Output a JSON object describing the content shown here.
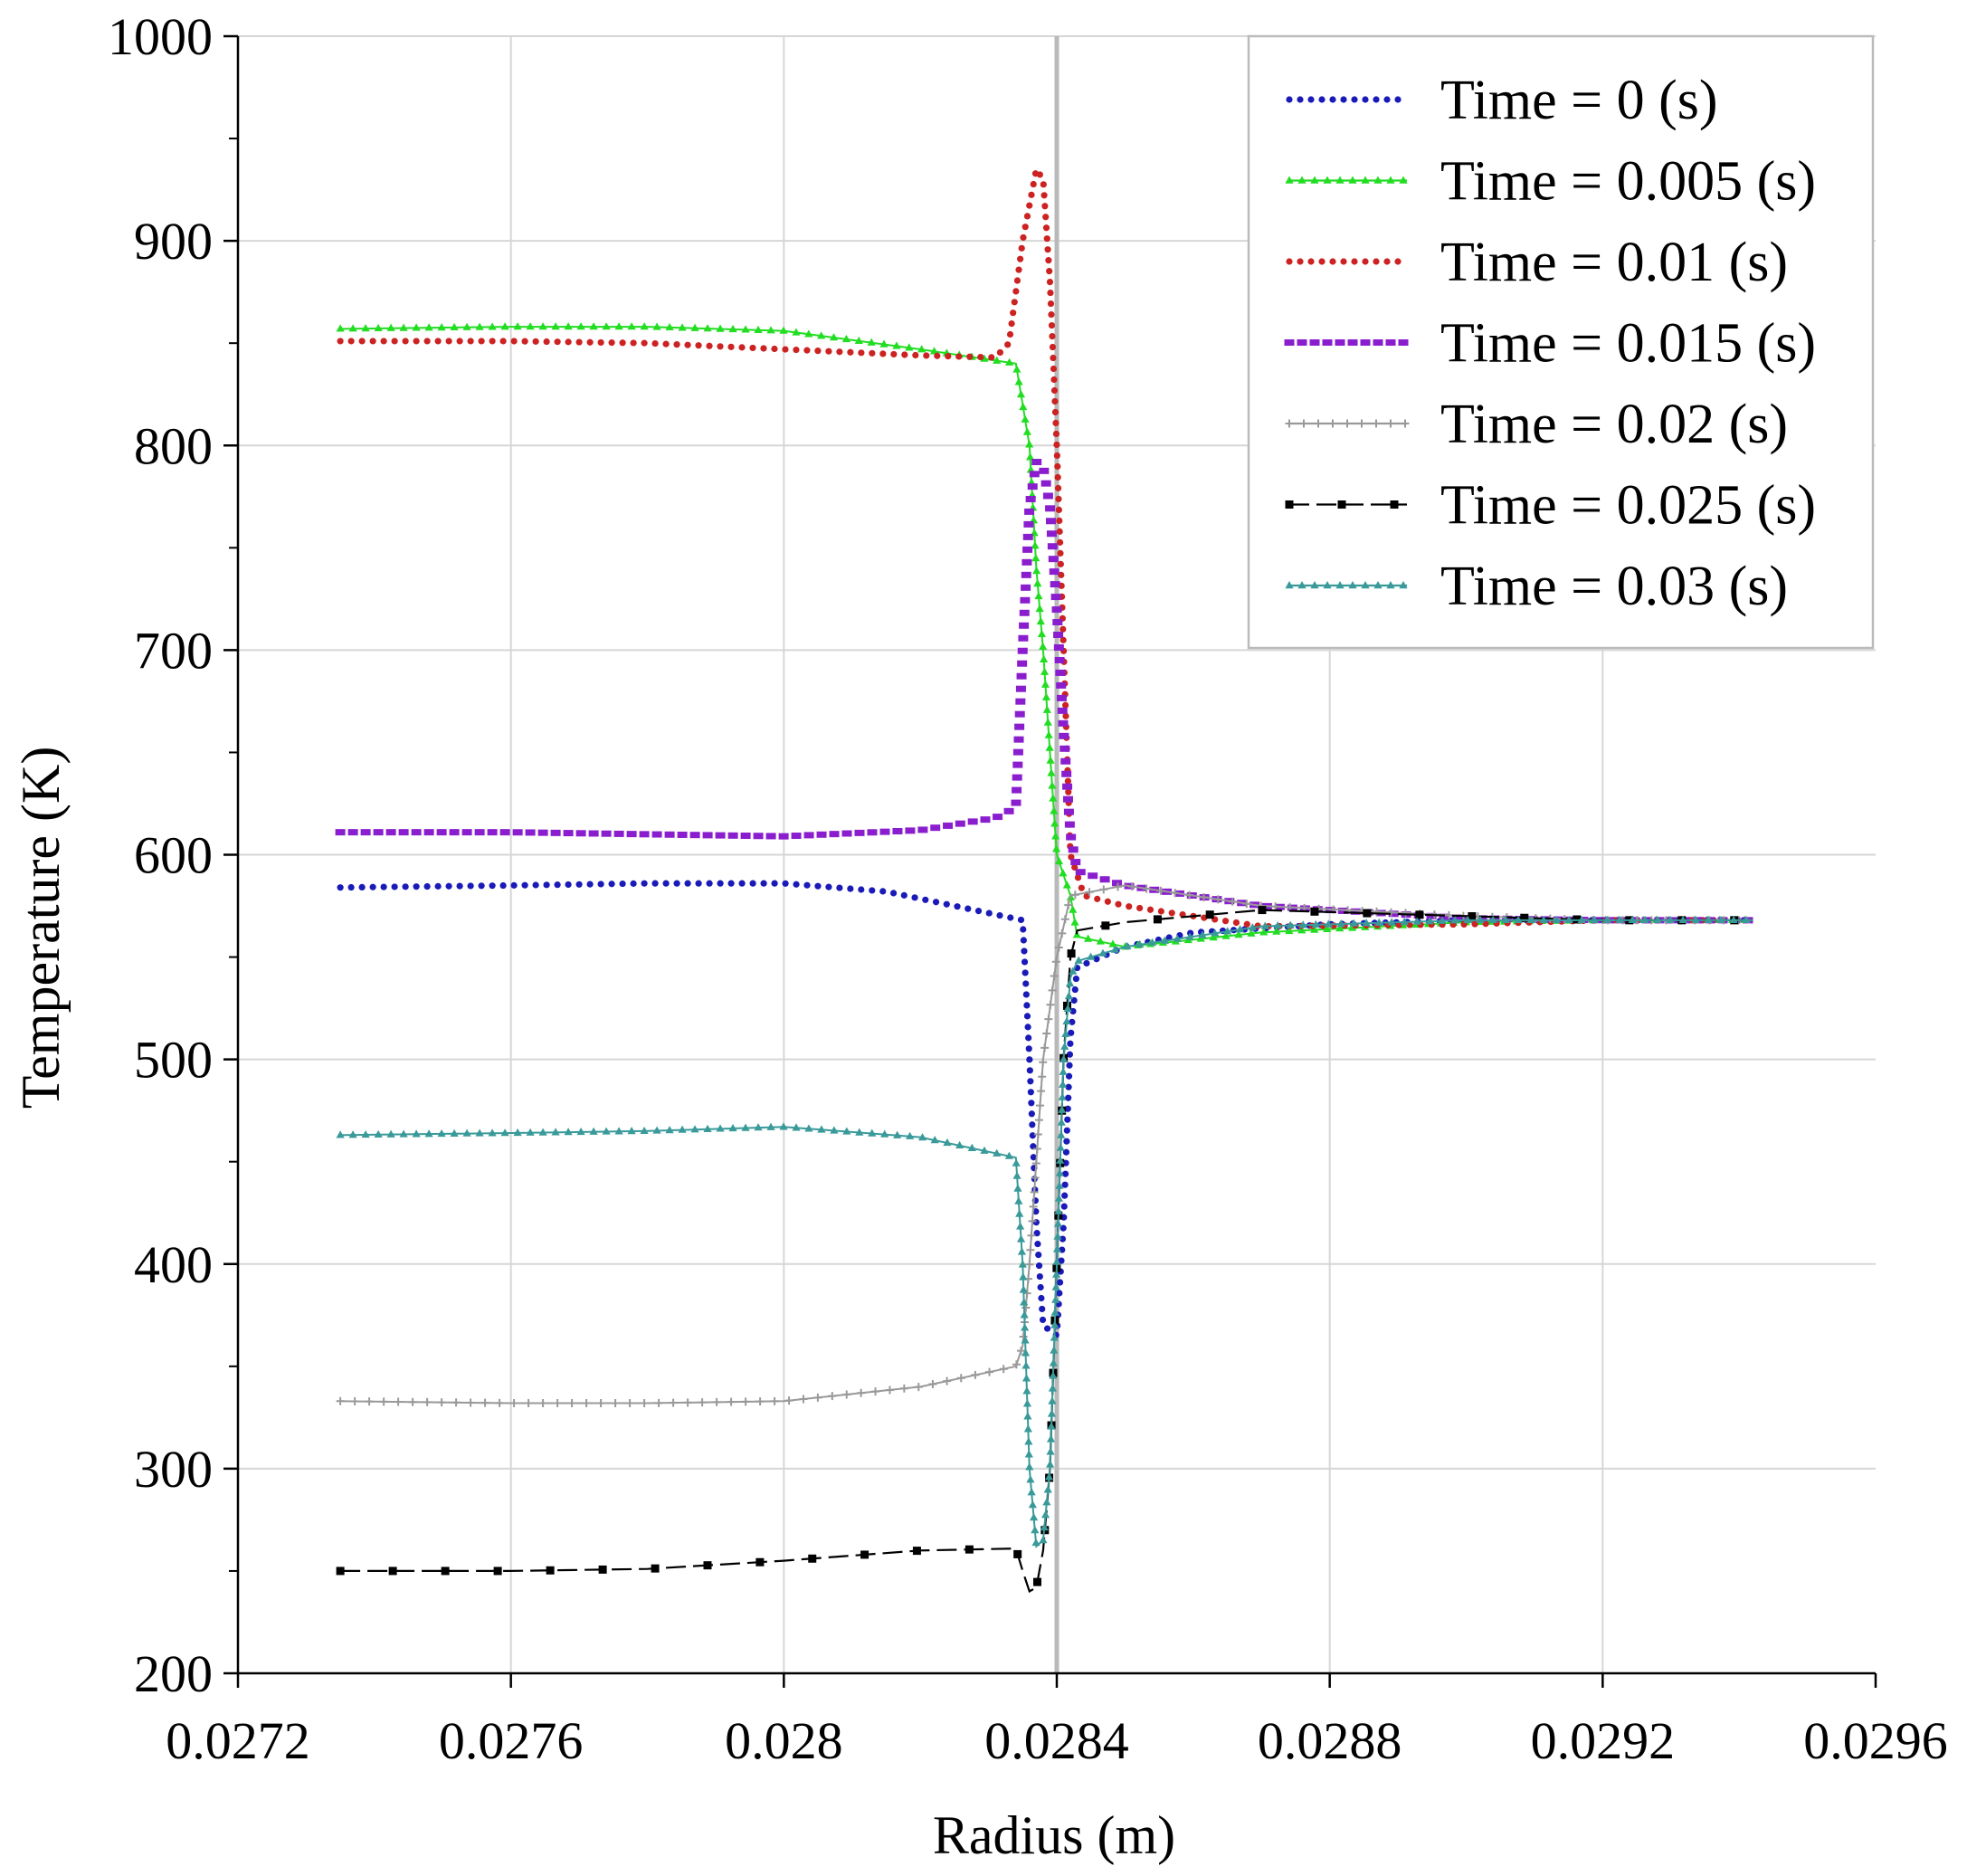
{
  "chart_data": {
    "type": "line",
    "title": "",
    "xlabel": "Radius (m)",
    "ylabel": "Temperature (K)",
    "xlim": [
      0.0272,
      0.0296
    ],
    "ylim": [
      200,
      1000
    ],
    "xticks": [
      0.0272,
      0.0276,
      0.028,
      0.0284,
      0.0288,
      0.0292,
      0.0296
    ],
    "xtick_labels": [
      "0.0272",
      "0.0276",
      "0.028",
      "0.0284",
      "0.0288",
      "0.0292",
      "0.0296"
    ],
    "yticks": [
      200,
      300,
      400,
      500,
      600,
      700,
      800,
      900,
      1000
    ],
    "ytick_labels": [
      "200",
      "300",
      "400",
      "500",
      "600",
      "700",
      "800",
      "900",
      "1000"
    ],
    "y_minor_ticks": [
      250,
      350,
      450,
      550,
      650,
      750,
      850,
      950
    ],
    "x_highlight": 0.0284,
    "grid": true,
    "legend_position": "top-right",
    "series": [
      {
        "name": "Time = 0 (s)",
        "color": "#1a1ab8",
        "style": "dots",
        "x": [
          0.02735,
          0.0276,
          0.0278,
          0.028,
          0.02815,
          0.02825,
          0.02835,
          0.02836,
          0.02837,
          0.02838,
          0.0284,
          0.02841,
          0.02842,
          0.02843,
          0.0285,
          0.0286,
          0.0288,
          0.029,
          0.0292,
          0.02942
        ],
        "y": [
          584,
          585,
          586,
          586,
          582,
          575,
          568,
          500,
          420,
          370,
          365,
          420,
          510,
          545,
          555,
          562,
          566,
          568,
          568,
          568
        ]
      },
      {
        "name": "Time = 0.005 (s)",
        "color": "#22dd22",
        "style": "triangles",
        "x": [
          0.02735,
          0.0276,
          0.0278,
          0.028,
          0.0282,
          0.02834,
          0.02836,
          0.02837,
          0.02838,
          0.0284,
          0.02842,
          0.02843,
          0.0285,
          0.0287,
          0.029,
          0.0292,
          0.02942
        ],
        "y": [
          857,
          858,
          858,
          856,
          847,
          840,
          800,
          740,
          700,
          600,
          580,
          560,
          555,
          562,
          567,
          568,
          568
        ]
      },
      {
        "name": "Time = 0.01 (s)",
        "color": "#cc2222",
        "style": "dots",
        "x": [
          0.02735,
          0.0276,
          0.0278,
          0.028,
          0.0282,
          0.02831,
          0.02833,
          0.02835,
          0.02837,
          0.02838,
          0.02839,
          0.0284,
          0.02841,
          0.02842,
          0.02844,
          0.0285,
          0.0287,
          0.029,
          0.0292,
          0.02942
        ],
        "y": [
          851,
          851,
          850,
          847,
          844,
          843,
          850,
          900,
          935,
          930,
          880,
          800,
          700,
          600,
          580,
          575,
          565,
          566,
          568,
          568
        ]
      },
      {
        "name": "Time = 0.015 (s)",
        "color": "#8a1ecf",
        "style": "dashes",
        "x": [
          0.02735,
          0.0276,
          0.0278,
          0.028,
          0.0282,
          0.02831,
          0.02834,
          0.02835,
          0.02836,
          0.02837,
          0.02838,
          0.02839,
          0.0284,
          0.02841,
          0.02842,
          0.02843,
          0.0285,
          0.0287,
          0.029,
          0.0292,
          0.02942
        ],
        "y": [
          611,
          611,
          610,
          609,
          612,
          618,
          623,
          700,
          770,
          792,
          790,
          770,
          720,
          660,
          610,
          592,
          585,
          575,
          569,
          568,
          568
        ]
      },
      {
        "name": "Time = 0.02 (s)",
        "color": "#999999",
        "style": "plus",
        "x": [
          0.02735,
          0.0276,
          0.0278,
          0.028,
          0.0282,
          0.02834,
          0.02835,
          0.02836,
          0.02837,
          0.02838,
          0.0284,
          0.02842,
          0.0285,
          0.0287,
          0.029,
          0.0292,
          0.02942
        ],
        "y": [
          333,
          332,
          332,
          333,
          340,
          350,
          360,
          400,
          450,
          500,
          550,
          580,
          585,
          575,
          570,
          568,
          568
        ]
      },
      {
        "name": "Time = 0.025 (s)",
        "color": "#000000",
        "style": "squares",
        "x": [
          0.02735,
          0.0276,
          0.0278,
          0.028,
          0.0282,
          0.02834,
          0.02835,
          0.02836,
          0.02837,
          0.02838,
          0.02839,
          0.0284,
          0.02841,
          0.02842,
          0.02843,
          0.0285,
          0.0287,
          0.029,
          0.0292,
          0.02942
        ],
        "y": [
          250,
          250,
          251,
          255,
          260,
          261,
          250,
          240,
          242,
          260,
          300,
          400,
          500,
          550,
          563,
          567,
          573,
          570,
          568,
          568
        ]
      },
      {
        "name": "Time = 0.03 (s)",
        "color": "#3a9a9a",
        "style": "triangles",
        "x": [
          0.02735,
          0.0276,
          0.0278,
          0.028,
          0.0282,
          0.02834,
          0.02835,
          0.02836,
          0.02837,
          0.02838,
          0.02839,
          0.0284,
          0.02841,
          0.02842,
          0.02843,
          0.0285,
          0.0287,
          0.029,
          0.0292,
          0.02942
        ],
        "y": [
          463,
          464,
          465,
          467,
          462,
          452,
          400,
          300,
          262,
          265,
          300,
          400,
          500,
          540,
          548,
          555,
          565,
          568,
          568,
          568
        ]
      }
    ]
  }
}
